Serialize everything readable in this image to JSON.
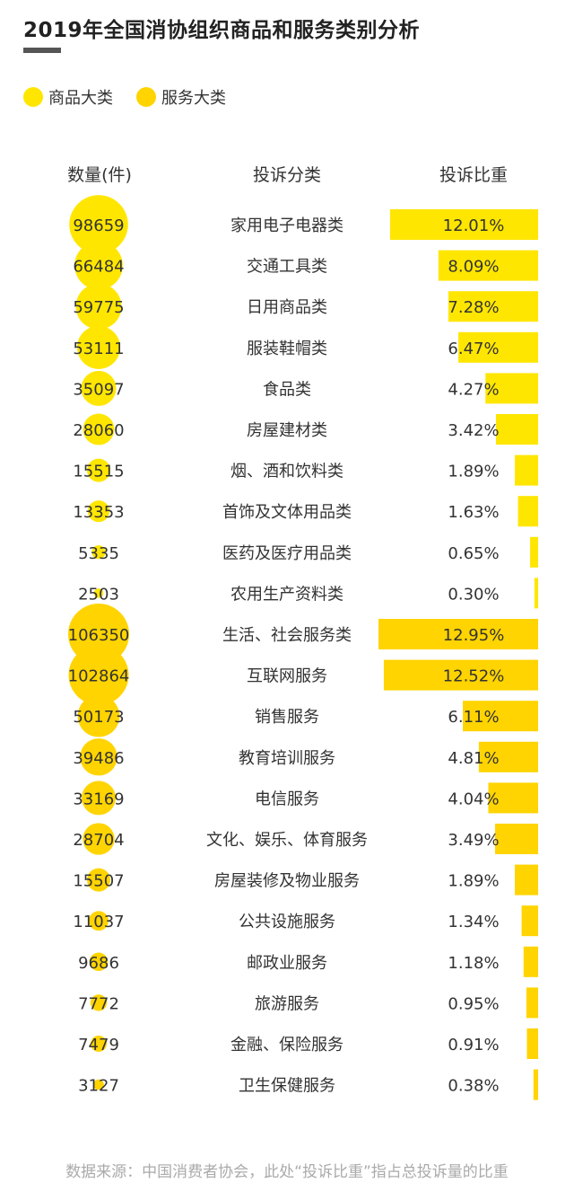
{
  "chart_data": {
    "type": "table",
    "title": "2019年全国消协组织商品和服务类别分析",
    "legend": [
      {
        "name": "商品大类",
        "color": "#FFE600"
      },
      {
        "name": "服务大类",
        "color": "#FFD400"
      }
    ],
    "columns": [
      "数量(件)",
      "投诉分类",
      "投诉比重"
    ],
    "rows": [
      {
        "count": 98659,
        "count_label": "98659",
        "category": "家用电子电器类",
        "share": 12.01,
        "share_label": "12.01%",
        "group": "商品大类"
      },
      {
        "count": 66484,
        "count_label": "66484",
        "category": "交通工具类",
        "share": 8.09,
        "share_label": "8.09%",
        "group": "商品大类"
      },
      {
        "count": 59775,
        "count_label": "59775",
        "category": "日用商品类",
        "share": 7.28,
        "share_label": "7.28%",
        "group": "商品大类"
      },
      {
        "count": 53111,
        "count_label": "53111",
        "category": "服装鞋帽类",
        "share": 6.47,
        "share_label": "6.47%",
        "group": "商品大类"
      },
      {
        "count": 35097,
        "count_label": "35097",
        "category": "食品类",
        "share": 4.27,
        "share_label": "4.27%",
        "group": "商品大类"
      },
      {
        "count": 28060,
        "count_label": "28060",
        "category": "房屋建材类",
        "share": 3.42,
        "share_label": "3.42%",
        "group": "商品大类"
      },
      {
        "count": 15515,
        "count_label": "15515",
        "category": "烟、酒和饮料类",
        "share": 1.89,
        "share_label": "1.89%",
        "group": "商品大类"
      },
      {
        "count": 13353,
        "count_label": "13353",
        "category": "首饰及文体用品类",
        "share": 1.63,
        "share_label": "1.63%",
        "group": "商品大类"
      },
      {
        "count": 5335,
        "count_label": "5335",
        "category": "医药及医疗用品类",
        "share": 0.65,
        "share_label": "0.65%",
        "group": "商品大类"
      },
      {
        "count": 2503,
        "count_label": "2503",
        "category": "农用生产资料类",
        "share": 0.3,
        "share_label": "0.30%",
        "group": "商品大类"
      },
      {
        "count": 106350,
        "count_label": "106350",
        "category": "生活、社会服务类",
        "share": 12.95,
        "share_label": "12.95%",
        "group": "服务大类"
      },
      {
        "count": 102864,
        "count_label": "102864",
        "category": "互联网服务",
        "share": 12.52,
        "share_label": "12.52%",
        "group": "服务大类"
      },
      {
        "count": 50173,
        "count_label": "50173",
        "category": "销售服务",
        "share": 6.11,
        "share_label": "6.11%",
        "group": "服务大类"
      },
      {
        "count": 39486,
        "count_label": "39486",
        "category": "教育培训服务",
        "share": 4.81,
        "share_label": "4.81%",
        "group": "服务大类"
      },
      {
        "count": 33169,
        "count_label": "33169",
        "category": "电信服务",
        "share": 4.04,
        "share_label": "4.04%",
        "group": "服务大类"
      },
      {
        "count": 28704,
        "count_label": "28704",
        "category": "文化、娱乐、体育服务",
        "share": 3.49,
        "share_label": "3.49%",
        "group": "服务大类"
      },
      {
        "count": 15507,
        "count_label": "15507",
        "category": "房屋装修及物业服务",
        "share": 1.89,
        "share_label": "1.89%",
        "group": "服务大类"
      },
      {
        "count": 11037,
        "count_label": "11037",
        "category": "公共设施服务",
        "share": 1.34,
        "share_label": "1.34%",
        "group": "服务大类"
      },
      {
        "count": 9686,
        "count_label": "9686",
        "category": "邮政业服务",
        "share": 1.18,
        "share_label": "1.18%",
        "group": "服务大类"
      },
      {
        "count": 7772,
        "count_label": "7772",
        "category": "旅游服务",
        "share": 0.95,
        "share_label": "0.95%",
        "group": "服务大类"
      },
      {
        "count": 7479,
        "count_label": "7479",
        "category": "金融、保险服务",
        "share": 0.91,
        "share_label": "0.91%",
        "group": "服务大类"
      },
      {
        "count": 3127,
        "count_label": "3127",
        "category": "卫生保健服务",
        "share": 0.38,
        "share_label": "0.38%",
        "group": "服务大类"
      }
    ]
  },
  "footer": "数据来源：中国消费者协会，此处“投诉比重”指占总投诉量的比重"
}
